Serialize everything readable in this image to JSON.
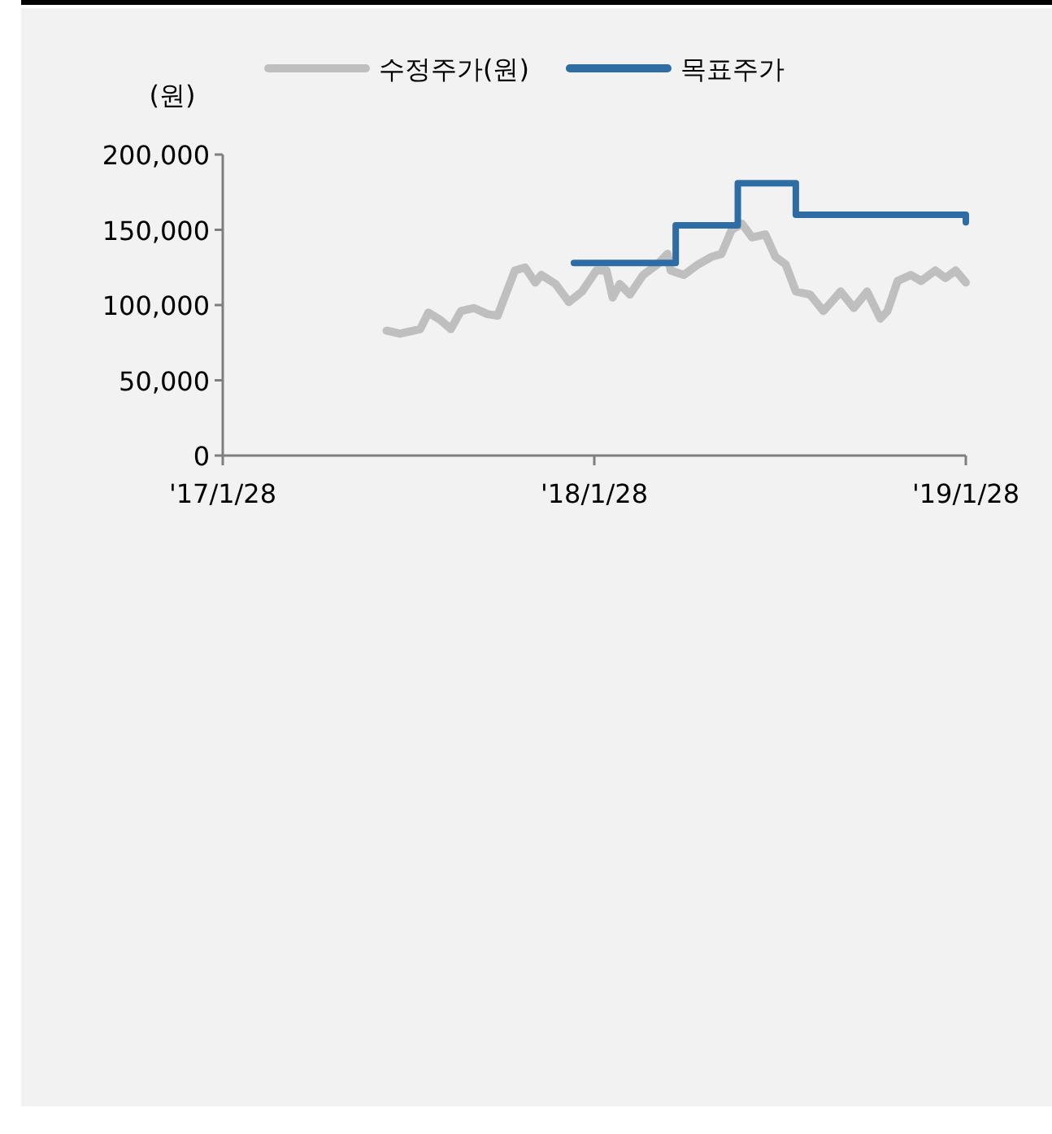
{
  "chart_data": {
    "type": "line",
    "ylabel": "(원)",
    "legend": "top",
    "grid": false,
    "marker": "none",
    "line_style": "solid",
    "xlim": [
      "2017-01-28",
      "2019-01-28"
    ],
    "xticks": [
      {
        "value": "2017-01-28",
        "label": "'17/1/28"
      },
      {
        "value": "2018-01-28",
        "label": "'18/1/28"
      },
      {
        "value": "2019-01-28",
        "label": "'19/1/28"
      }
    ],
    "ylim": [
      0,
      200000
    ],
    "yticks": [
      {
        "value": 0,
        "label": "0"
      },
      {
        "value": 50000,
        "label": "50,000"
      },
      {
        "value": 100000,
        "label": "100,000"
      },
      {
        "value": 150000,
        "label": "150,000"
      },
      {
        "value": 200000,
        "label": "200,000"
      }
    ],
    "series": [
      {
        "name": "수정주가(원)",
        "color": "#bfbfbf",
        "x": [
          "2017-07-08",
          "2017-07-21",
          "2017-08-10",
          "2017-08-18",
          "2017-08-30",
          "2017-09-09",
          "2017-09-19",
          "2017-10-02",
          "2017-10-15",
          "2017-10-25",
          "2017-11-11",
          "2017-11-21",
          "2017-12-01",
          "2017-12-07",
          "2017-12-21",
          "2018-01-03",
          "2018-01-16",
          "2018-01-30",
          "2018-02-09",
          "2018-02-15",
          "2018-02-22",
          "2018-03-04",
          "2018-03-17",
          "2018-03-31",
          "2018-04-10",
          "2018-04-13",
          "2018-04-26",
          "2018-05-10",
          "2018-05-23",
          "2018-06-02",
          "2018-06-12",
          "2018-06-22",
          "2018-07-02",
          "2018-07-15",
          "2018-07-25",
          "2018-08-04",
          "2018-08-14",
          "2018-08-28",
          "2018-09-10",
          "2018-09-27",
          "2018-10-10",
          "2018-10-23",
          "2018-11-05",
          "2018-11-12",
          "2018-11-22",
          "2018-12-05",
          "2018-12-15",
          "2018-12-29",
          "2019-01-08",
          "2019-01-18",
          "2019-01-28"
        ],
        "values": [
          83000,
          81000,
          84000,
          95000,
          90000,
          84000,
          96000,
          98000,
          94000,
          93000,
          123000,
          125000,
          115000,
          120000,
          114000,
          102000,
          109000,
          123000,
          123000,
          105000,
          114000,
          107000,
          120000,
          127000,
          134000,
          123000,
          120000,
          127000,
          132000,
          134000,
          150000,
          154000,
          145000,
          147000,
          132000,
          127000,
          109000,
          107000,
          96000,
          109000,
          98000,
          109000,
          91000,
          96000,
          116000,
          120000,
          116000,
          123000,
          118000,
          123000,
          115000
        ]
      },
      {
        "name": "목표주가",
        "color": "#2e6ca4",
        "type": "step",
        "x": [
          "2018-01-08",
          "2018-04-18",
          "2018-06-18",
          "2018-08-14",
          "2019-01-27",
          "2019-01-28"
        ],
        "values": [
          128000,
          153000,
          181000,
          160000,
          160000,
          155000
        ]
      }
    ]
  }
}
